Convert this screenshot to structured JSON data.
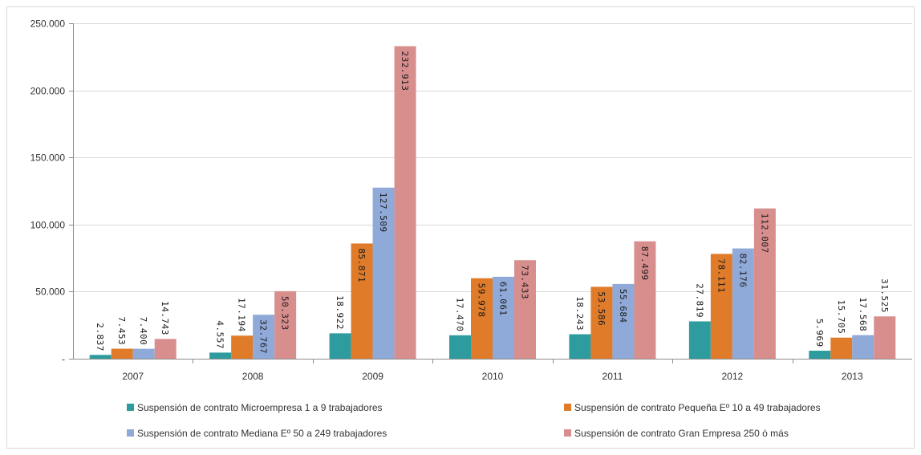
{
  "chart_data": {
    "type": "bar",
    "title": "",
    "xlabel": "",
    "ylabel": "",
    "categories": [
      "2007",
      "2008",
      "2009",
      "2010",
      "2011",
      "2012",
      "2013"
    ],
    "ylim": [
      0,
      250000
    ],
    "yticks": [
      {
        "value": 0,
        "label": "-"
      },
      {
        "value": 50000,
        "label": "50.000"
      },
      {
        "value": 100000,
        "label": "100.000"
      },
      {
        "value": 150000,
        "label": "150.000"
      },
      {
        "value": 200000,
        "label": "200.000"
      },
      {
        "value": 250000,
        "label": "250.000"
      }
    ],
    "grid": true,
    "legend_position": "bottom",
    "series": [
      {
        "name": "Suspensión de contrato Microempresa 1 a 9 trabajadores",
        "color": "#2e9c9e",
        "values": [
          2837,
          4557,
          18922,
          17470,
          18243,
          27819,
          5969
        ],
        "labels": [
          "2.837",
          "4.557",
          "18.922",
          "17.470",
          "18.243",
          "27.819",
          "5.969"
        ]
      },
      {
        "name": "Suspensión de contrato Pequeña Eº   10 a 49 trabajadores",
        "color": "#e07b2a",
        "values": [
          7453,
          17194,
          85871,
          59978,
          53586,
          78111,
          15705
        ],
        "labels": [
          "7.453",
          "17.194",
          "85.871",
          "59.978",
          "53.586",
          "78.111",
          "15.705"
        ]
      },
      {
        "name": "Suspensión de contrato Mediana Eº    50 a 249 trabajadores",
        "color": "#8fa9d8",
        "values": [
          7400,
          32767,
          127509,
          61061,
          55684,
          82176,
          17568
        ],
        "labels": [
          "7.400",
          "32.767",
          "127.509",
          "61.061",
          "55.684",
          "82.176",
          "17.568"
        ]
      },
      {
        "name": "Suspensión de contrato Gran Empresa 250 ó más",
        "color": "#d98e8e",
        "values": [
          14743,
          50323,
          232913,
          73433,
          87499,
          112007,
          31525
        ],
        "labels": [
          "14.743",
          "50.323",
          "232.913",
          "73.433",
          "87.499",
          "112.007",
          "31.525"
        ]
      }
    ]
  }
}
